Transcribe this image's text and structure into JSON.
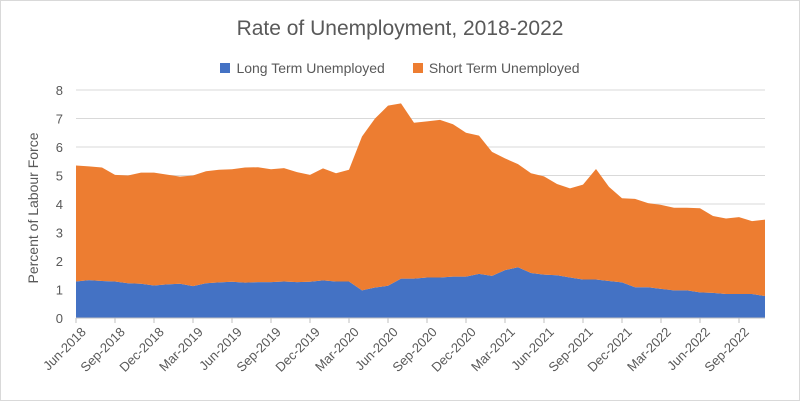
{
  "chart_data": {
    "type": "area",
    "stacked": true,
    "title": "Rate of Unemployment, 2018-2022",
    "ylabel": "Percent of Labour Force",
    "xlabel": "",
    "ylim": [
      0,
      8
    ],
    "yticks": [
      "0",
      "1",
      "2",
      "3",
      "4",
      "5",
      "6",
      "7",
      "8"
    ],
    "legend_position": "top",
    "x_tick_labels": [
      "Jun-2018",
      "Sep-2018",
      "Dec-2018",
      "Mar-2019",
      "Jun-2019",
      "Sep-2019",
      "Dec-2019",
      "Mar-2020",
      "Jun-2020",
      "Sep-2020",
      "Dec-2020",
      "Mar-2021",
      "Jun-2021",
      "Sep-2021",
      "Dec-2021",
      "Mar-2022",
      "Jun-2022",
      "Sep-2022"
    ],
    "categories": [
      "Jun-2018",
      "Jul-2018",
      "Aug-2018",
      "Sep-2018",
      "Oct-2018",
      "Nov-2018",
      "Dec-2018",
      "Jan-2019",
      "Feb-2019",
      "Mar-2019",
      "Apr-2019",
      "May-2019",
      "Jun-2019",
      "Jul-2019",
      "Aug-2019",
      "Sep-2019",
      "Oct-2019",
      "Nov-2019",
      "Dec-2019",
      "Jan-2020",
      "Feb-2020",
      "Mar-2020",
      "Apr-2020",
      "May-2020",
      "Jun-2020",
      "Jul-2020",
      "Aug-2020",
      "Sep-2020",
      "Oct-2020",
      "Nov-2020",
      "Dec-2020",
      "Jan-2021",
      "Feb-2021",
      "Mar-2021",
      "Apr-2021",
      "May-2021",
      "Jun-2021",
      "Jul-2021",
      "Aug-2021",
      "Sep-2021",
      "Oct-2021",
      "Nov-2021",
      "Dec-2021",
      "Jan-2022",
      "Feb-2022",
      "Mar-2022",
      "Apr-2022",
      "May-2022",
      "Jun-2022",
      "Jul-2022",
      "Aug-2022",
      "Sep-2022",
      "Oct-2022",
      "Nov-2022"
    ],
    "series": [
      {
        "name": "Long Term Unemployed",
        "color": "#4472C4",
        "values": [
          1.28,
          1.33,
          1.3,
          1.28,
          1.22,
          1.2,
          1.14,
          1.18,
          1.2,
          1.12,
          1.22,
          1.25,
          1.27,
          1.24,
          1.26,
          1.26,
          1.28,
          1.26,
          1.27,
          1.32,
          1.28,
          1.28,
          0.97,
          1.07,
          1.13,
          1.38,
          1.38,
          1.42,
          1.42,
          1.45,
          1.45,
          1.55,
          1.48,
          1.68,
          1.78,
          1.58,
          1.52,
          1.5,
          1.42,
          1.35,
          1.35,
          1.3,
          1.25,
          1.08,
          1.08,
          1.02,
          0.97,
          0.97,
          0.9,
          0.88,
          0.84,
          0.84,
          0.84,
          0.77
        ]
      },
      {
        "name": "Short Term Unemployed",
        "color": "#ED7D31",
        "values": [
          4.07,
          3.99,
          3.98,
          3.74,
          3.78,
          3.9,
          3.96,
          3.85,
          3.76,
          3.88,
          3.93,
          3.95,
          3.95,
          4.04,
          4.03,
          3.96,
          3.98,
          3.86,
          3.75,
          3.93,
          3.8,
          3.92,
          5.4,
          5.93,
          6.32,
          6.15,
          5.47,
          5.48,
          5.53,
          5.35,
          5.05,
          4.85,
          4.35,
          3.92,
          3.62,
          3.5,
          3.45,
          3.2,
          3.13,
          3.33,
          3.88,
          3.3,
          2.95,
          3.1,
          2.95,
          2.95,
          2.9,
          2.9,
          2.95,
          2.7,
          2.65,
          2.7,
          2.56,
          2.68
        ]
      }
    ]
  }
}
